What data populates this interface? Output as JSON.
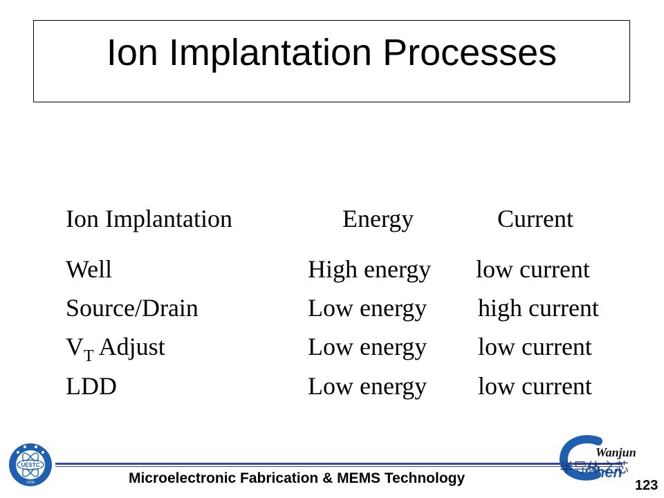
{
  "slide": {
    "title": "Ion Implantation Processes",
    "table": {
      "headers": [
        "Ion Implantation",
        "Energy",
        "Current"
      ],
      "rows": [
        {
          "process": "Well",
          "energy": "High energy",
          "current": "low current"
        },
        {
          "process": "Source/Drain",
          "energy": "Low energy",
          "current": "high current"
        },
        {
          "process_main": "V",
          "process_sub": "T",
          "process_rest": " Adjust",
          "energy": "Low energy",
          "current": "low current"
        },
        {
          "process": "LDD",
          "energy": "Low energy",
          "current": "low current"
        }
      ]
    },
    "footer": {
      "course": "Microelectronic Fabrication & MEMS Technology",
      "page_number": "123",
      "logo_left_text": "UESTC",
      "logo_left_year": "1956",
      "logo_right_signature": "Wanjun",
      "logo_right_chars": "Chen",
      "watermark": "半导体之芯"
    },
    "colors": {
      "rule": "#3344aa",
      "logo_blue": "#1f5fb0"
    }
  }
}
